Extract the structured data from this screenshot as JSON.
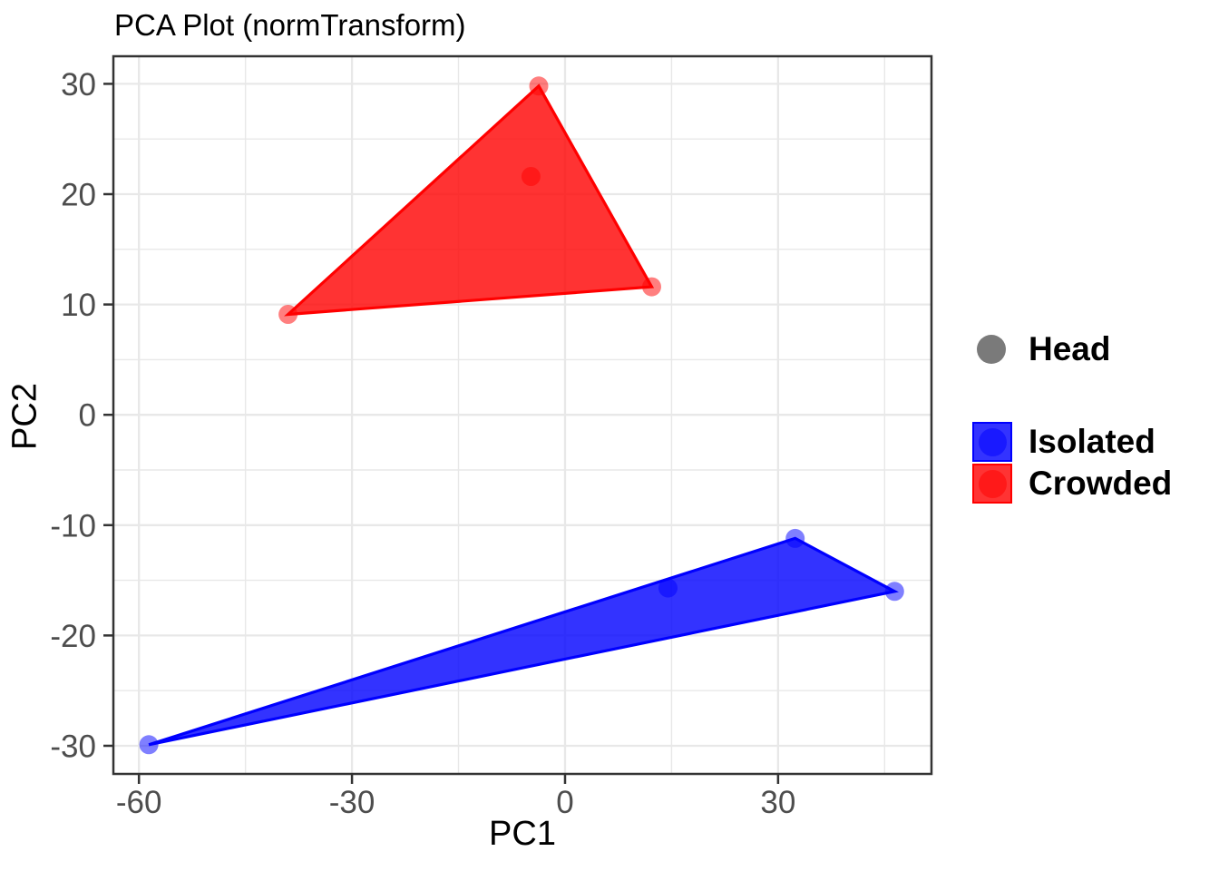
{
  "title": "PCA Plot (normTransform)",
  "axes": {
    "x_label": "PC1",
    "y_label": "PC2"
  },
  "legend": {
    "shape_label": "Head",
    "shape_color": "#7A7A7A",
    "items": [
      {
        "label": "Isolated",
        "color": "#0000FF"
      },
      {
        "label": "Crowded",
        "color": "#FF0000"
      }
    ]
  },
  "style": {
    "background": "#FFFFFF",
    "grid_color": "#E8E8E8",
    "panel_border_color": "#333333",
    "tick_color": "#333333",
    "tick_label_color": "#4D4D4D",
    "hull_fill_opacity": 0.8,
    "point_opacity": 0.5
  },
  "chart_data": {
    "type": "scatter",
    "title": "PCA Plot (normTransform)",
    "xlabel": "PC1",
    "ylabel": "PC2",
    "xlim": [
      -63.6,
      51.6
    ],
    "ylim": [
      -32.55,
      32.5
    ],
    "x_major_ticks": [
      -60,
      -30,
      0,
      30
    ],
    "x_minor_ticks": [
      -45,
      -15,
      15,
      45
    ],
    "y_major_ticks": [
      30,
      20,
      10,
      0,
      -10,
      -20,
      -30
    ],
    "y_minor_ticks": [
      25,
      15,
      5,
      -5,
      -15,
      -25
    ],
    "grid": true,
    "legend_position": "right",
    "point_legend": {
      "label": "Head",
      "color": "#7A7A7A"
    },
    "series": [
      {
        "name": "Crowded",
        "color": "#FF0000",
        "points": [
          [
            -39.0,
            9.1
          ],
          [
            -3.7,
            29.8
          ],
          [
            12.2,
            11.6
          ],
          [
            -4.8,
            21.6
          ]
        ],
        "hull": [
          [
            -39.0,
            9.1
          ],
          [
            -3.7,
            29.8
          ],
          [
            12.2,
            11.6
          ]
        ]
      },
      {
        "name": "Isolated",
        "color": "#0000FF",
        "points": [
          [
            -58.6,
            -29.9
          ],
          [
            14.5,
            -15.7
          ],
          [
            32.4,
            -11.2
          ],
          [
            46.4,
            -16.0
          ]
        ],
        "hull": [
          [
            -58.6,
            -29.9
          ],
          [
            32.4,
            -11.2
          ],
          [
            46.4,
            -16.0
          ]
        ]
      }
    ]
  }
}
